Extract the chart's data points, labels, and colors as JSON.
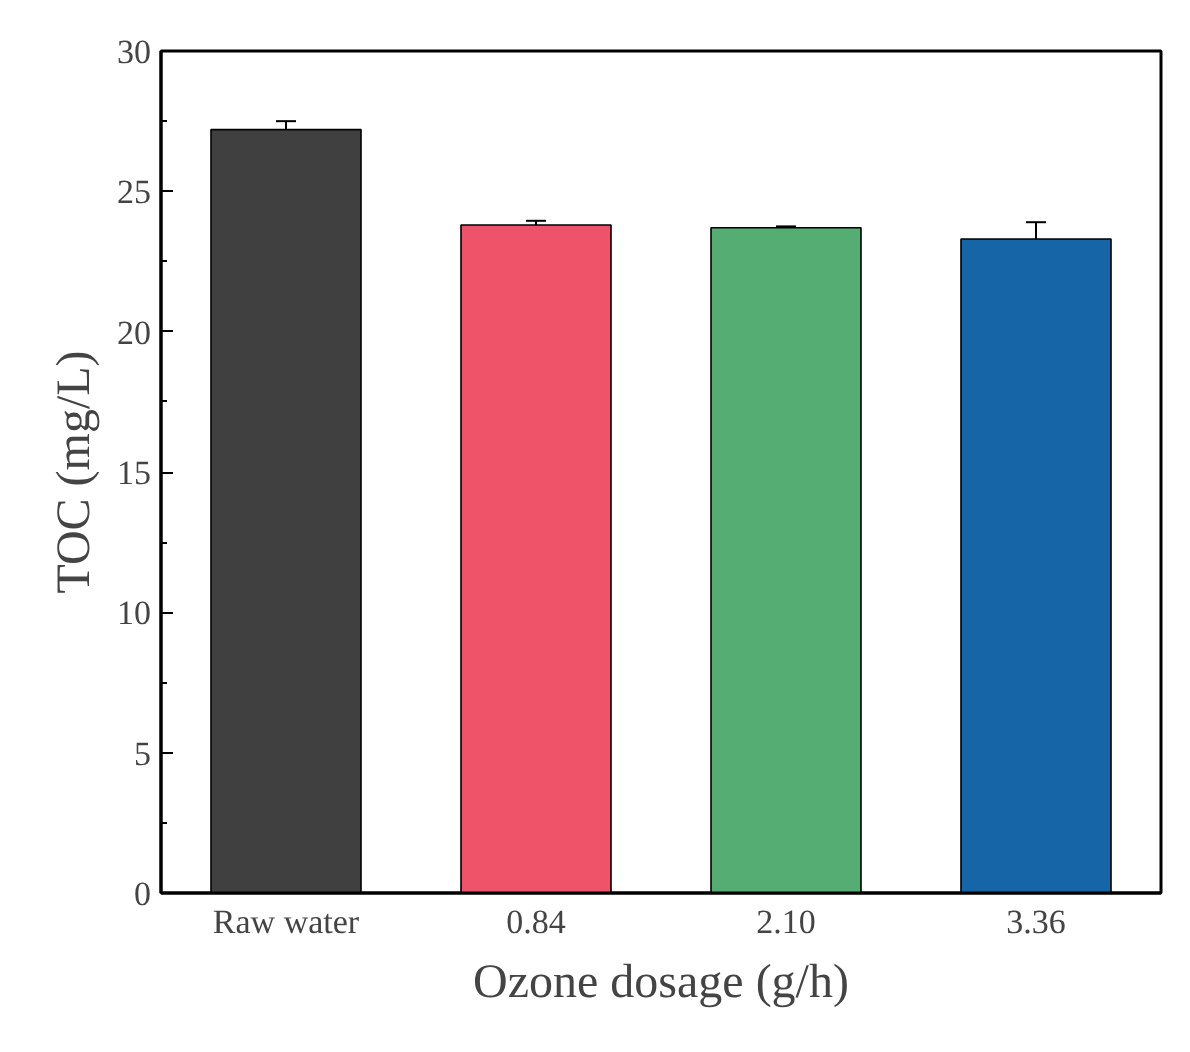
{
  "chart_data": {
    "type": "bar",
    "xlabel": "Ozone dosage (g/h)",
    "ylabel": "TOC (mg/L)",
    "categories": [
      "Raw water",
      "0.84",
      "2.10",
      "3.36"
    ],
    "values": [
      27.2,
      23.8,
      23.7,
      23.3
    ],
    "colors": [
      "#404040",
      "#ef5369",
      "#55ad74",
      "#1565a7"
    ],
    "errors": [
      0.3,
      0.15,
      0.05,
      0.6
    ],
    "ylim": [
      0,
      30
    ],
    "yticks": [
      0,
      5,
      10,
      15,
      20,
      25,
      30
    ],
    "grid": false
  }
}
